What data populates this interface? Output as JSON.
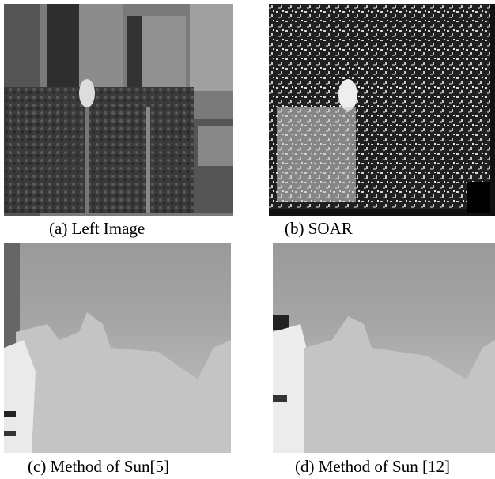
{
  "figure": {
    "panels": [
      {
        "caption": "(a) Left Image"
      },
      {
        "caption": "(b) SOAR"
      },
      {
        "caption": "(c) Method of Sun[5]"
      },
      {
        "caption": "(d) Method of Sun [12]"
      }
    ]
  }
}
